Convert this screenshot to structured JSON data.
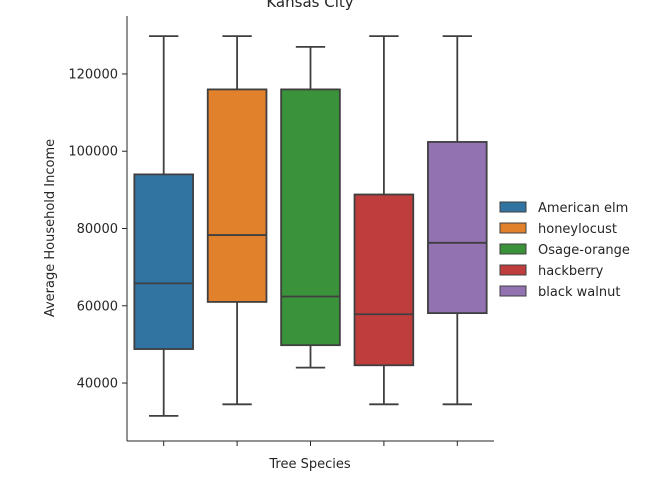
{
  "chart_data": {
    "type": "box",
    "title": "Kansas City",
    "xlabel": "Tree Species",
    "ylabel": "Average Household Income",
    "ylim": [
      25000,
      135000
    ],
    "yticks": [
      40000,
      60000,
      80000,
      100000,
      120000
    ],
    "legend_position": "right",
    "grid": false,
    "categories": [
      "American elm",
      "honeylocust",
      "Osage-orange",
      "hackberry",
      "black walnut"
    ],
    "colors": [
      "#3274a1",
      "#e1812c",
      "#3a923a",
      "#c03d3e",
      "#9372b2"
    ],
    "series": [
      {
        "name": "American elm",
        "min": 31500,
        "q1": 48800,
        "median": 65800,
        "q3": 94000,
        "max": 129800
      },
      {
        "name": "honeylocust",
        "min": 34500,
        "q1": 61000,
        "median": 78300,
        "q3": 116000,
        "max": 129800
      },
      {
        "name": "Osage-orange",
        "min": 44000,
        "q1": 49800,
        "median": 62400,
        "q3": 116000,
        "max": 127000
      },
      {
        "name": "hackberry",
        "min": 34500,
        "q1": 44600,
        "median": 57800,
        "q3": 88800,
        "max": 129800
      },
      {
        "name": "black walnut",
        "min": 34500,
        "q1": 58100,
        "median": 76300,
        "q3": 102400,
        "max": 129800
      }
    ]
  }
}
